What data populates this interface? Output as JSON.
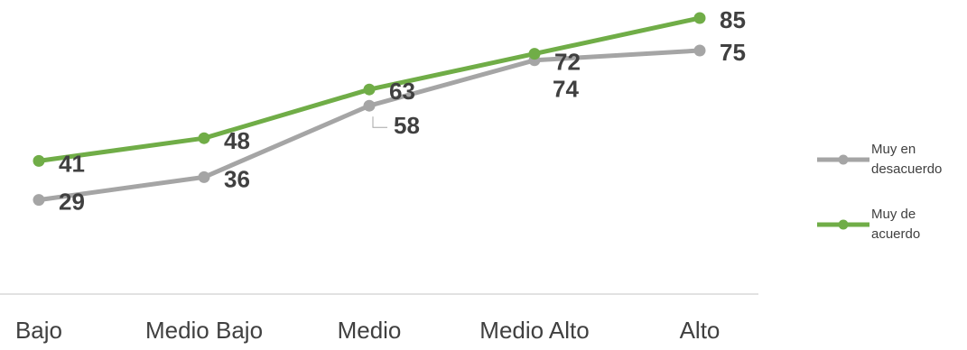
{
  "chart_data": {
    "type": "line",
    "categories": [
      "Bajo",
      "Medio Bajo",
      "Medio",
      "Medio Alto",
      "Alto"
    ],
    "series": [
      {
        "name": "Muy en desacuerdo",
        "color": "#a5a5a5",
        "values": [
          29,
          36,
          58,
          72,
          75
        ]
      },
      {
        "name": "Muy de acuerdo",
        "color": "#70ad47",
        "values": [
          41,
          48,
          63,
          74,
          85
        ]
      }
    ],
    "ylim": [
      0,
      90
    ],
    "legend": "right"
  }
}
